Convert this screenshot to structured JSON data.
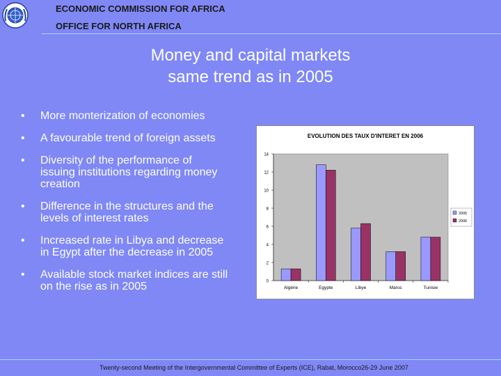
{
  "header": {
    "org_line1": "ECONOMIC COMMISSION FOR AFRICA",
    "org_line2": "OFFICE FOR NORTH AFRICA",
    "logo_icon": "un-emblem-icon"
  },
  "title": {
    "line1": "Money and capital markets",
    "line2": "same trend as in 2005"
  },
  "bullets": [
    "More monterization of economies",
    "A favourable trend of foreign assets",
    "Diversity of the performance of issuing institutions regarding money creation",
    "Difference in the structures and the levels of interest rates",
    "Increased rate in Libya and decrease in Egypt after the decrease in 2005",
    "Available stock market indices are still on the rise as in 2005"
  ],
  "bullet_symbol": "•",
  "chart_data": {
    "type": "bar",
    "title": "EVOLUTION DES TAUX D'INTERET EN 2006",
    "categories": [
      "Algérie",
      "Egypte",
      "Libye",
      "Maroc",
      "Tunisie"
    ],
    "series": [
      {
        "name": "2005",
        "color": "#9999ff",
        "values": [
          1.3,
          12.8,
          5.8,
          3.2,
          4.8
        ]
      },
      {
        "name": "2006",
        "color": "#993366",
        "values": [
          1.3,
          12.2,
          6.3,
          3.2,
          4.8
        ]
      }
    ],
    "ylim": [
      0,
      14
    ],
    "yticks": [
      "0",
      "2",
      "4",
      "6",
      "8",
      "10",
      "12",
      "14"
    ],
    "legend": "right",
    "grid": false,
    "plot_background": "#c0c0c0"
  },
  "footer": {
    "text": "Twenty-second Meeting of the Intergovernmental Committee of Experts (ICE), Rabat, Morocco26-29 June 2007"
  },
  "colors": {
    "slide_background": "#7f88f5",
    "rule": "#a9d3f0"
  }
}
